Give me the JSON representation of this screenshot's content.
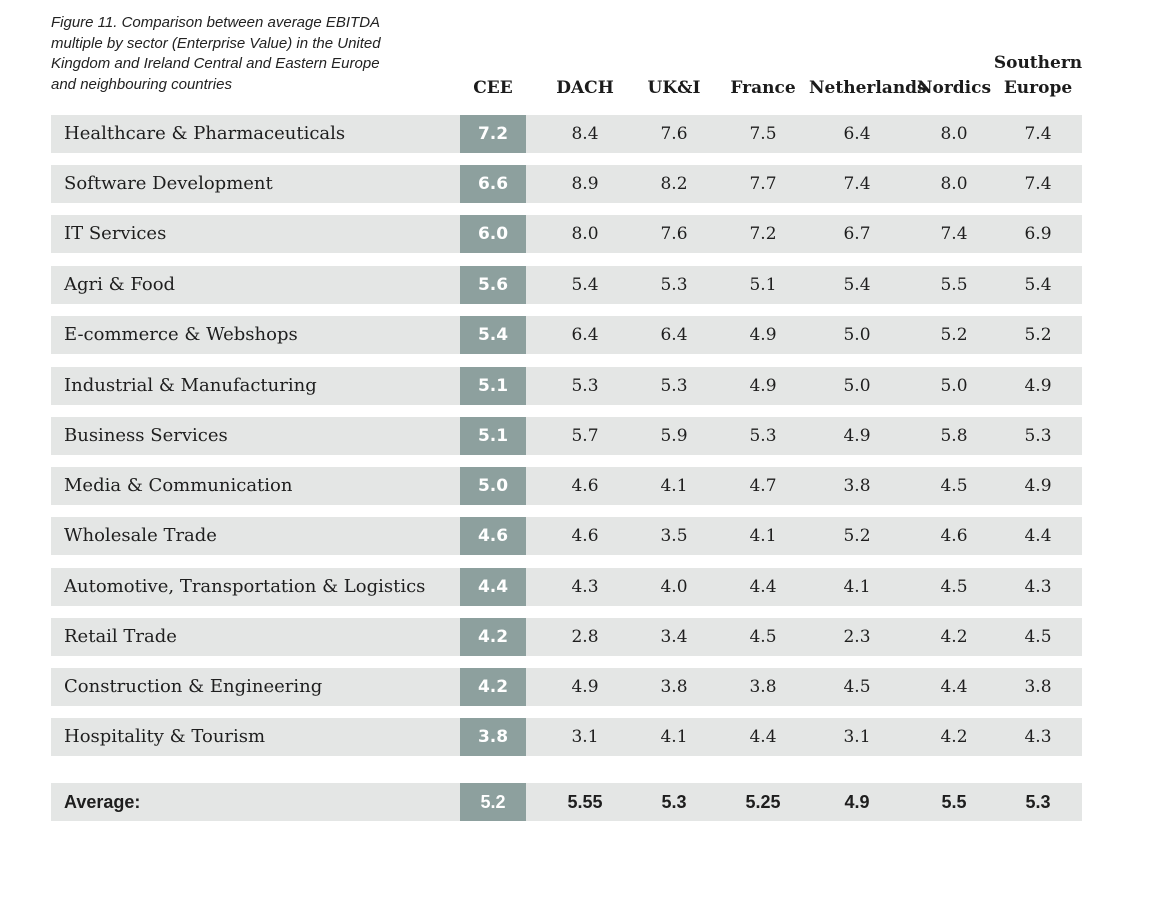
{
  "chart_data": {
    "type": "table",
    "title_lines": [
      "Figure 11. Comparison between average EBITDA",
      "multiple by sector (Enterprise Value) in the United",
      "Kingdom and Ireland Central and Eastern Europe",
      "and neighbouring countries"
    ],
    "columns": [
      {
        "key": "cee",
        "lines": [
          "CEE"
        ]
      },
      {
        "key": "dach",
        "lines": [
          "DACH"
        ]
      },
      {
        "key": "ukandi",
        "lines": [
          "UK&I"
        ]
      },
      {
        "key": "france",
        "lines": [
          "France"
        ]
      },
      {
        "key": "netherlands",
        "lines": [
          "Netherlands"
        ]
      },
      {
        "key": "nordics",
        "lines": [
          "Nordics"
        ]
      },
      {
        "key": "southern_europe",
        "lines": [
          "Southern",
          "Europe"
        ]
      }
    ],
    "rows": [
      {
        "label": "Healthcare & Pharmaceuticals",
        "values": [
          "7.2",
          "8.4",
          "7.6",
          "7.5",
          "6.4",
          "8.0",
          "7.4"
        ]
      },
      {
        "label": "Software Development",
        "values": [
          "6.6",
          "8.9",
          "8.2",
          "7.7",
          "7.4",
          "8.0",
          "7.4"
        ]
      },
      {
        "label": "IT Services",
        "values": [
          "6.0",
          "8.0",
          "7.6",
          "7.2",
          "6.7",
          "7.4",
          "6.9"
        ]
      },
      {
        "label": "Agri & Food",
        "values": [
          "5.6",
          "5.4",
          "5.3",
          "5.1",
          "5.4",
          "5.5",
          "5.4"
        ]
      },
      {
        "label": "E-commerce & Webshops",
        "values": [
          "5.4",
          "6.4",
          "6.4",
          "4.9",
          "5.0",
          "5.2",
          "5.2"
        ]
      },
      {
        "label": "Industrial & Manufacturing",
        "values": [
          "5.1",
          "5.3",
          "5.3",
          "4.9",
          "5.0",
          "5.0",
          "4.9"
        ]
      },
      {
        "label": "Business Services",
        "values": [
          "5.1",
          "5.7",
          "5.9",
          "5.3",
          "4.9",
          "5.8",
          "5.3"
        ]
      },
      {
        "label": "Media & Communication",
        "values": [
          "5.0",
          "4.6",
          "4.1",
          "4.7",
          "3.8",
          "4.5",
          "4.9"
        ]
      },
      {
        "label": "Wholesale Trade",
        "values": [
          "4.6",
          "4.6",
          "3.5",
          "4.1",
          "5.2",
          "4.6",
          "4.4"
        ]
      },
      {
        "label": "Automotive, Transportation & Logistics",
        "values": [
          "4.4",
          "4.3",
          "4.0",
          "4.4",
          "4.1",
          "4.5",
          "4.3"
        ]
      },
      {
        "label": "Retail Trade",
        "values": [
          "4.2",
          "2.8",
          "3.4",
          "4.5",
          "2.3",
          "4.2",
          "4.5"
        ]
      },
      {
        "label": "Construction & Engineering",
        "values": [
          "4.2",
          "4.9",
          "3.8",
          "3.8",
          "4.5",
          "4.4",
          "3.8"
        ]
      },
      {
        "label": "Hospitality & Tourism",
        "values": [
          "3.8",
          "3.1",
          "4.1",
          "4.4",
          "3.1",
          "4.2",
          "4.3"
        ]
      }
    ],
    "average": {
      "label": "Average:",
      "values": [
        "5.2",
        "5.55",
        "5.3",
        "5.25",
        "4.9",
        "5.5",
        "5.3"
      ]
    }
  },
  "colors": {
    "row_band": "#e4e6e5",
    "cee_band": "#8da09e",
    "cee_text": "#ffffff"
  }
}
